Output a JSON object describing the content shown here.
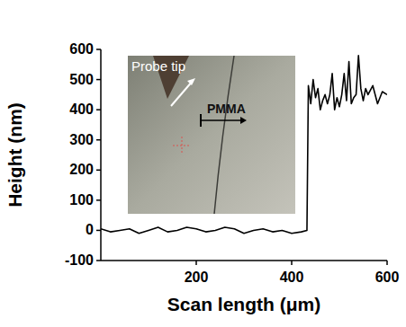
{
  "chart_data": {
    "type": "line",
    "x_label": "Scan length  (μm)",
    "y_label": "Height (nm)",
    "annotations": [
      "Probe tip",
      "PMMA"
    ],
    "x": [
      0,
      20,
      40,
      60,
      80,
      100,
      120,
      140,
      160,
      180,
      200,
      220,
      240,
      260,
      280,
      300,
      320,
      340,
      360,
      380,
      400,
      420,
      432,
      435,
      440,
      445,
      450,
      455,
      460,
      465,
      470,
      475,
      480,
      485,
      490,
      495,
      500,
      505,
      510,
      515,
      520,
      525,
      530,
      535,
      540,
      545,
      550,
      555,
      560,
      570,
      580,
      590,
      600
    ],
    "values": [
      5,
      -5,
      0,
      5,
      -10,
      0,
      10,
      -5,
      0,
      10,
      5,
      -5,
      0,
      10,
      5,
      -10,
      0,
      5,
      -5,
      0,
      -10,
      -5,
      0,
      480,
      420,
      500,
      440,
      470,
      400,
      430,
      450,
      420,
      450,
      520,
      400,
      440,
      410,
      450,
      520,
      430,
      560,
      420,
      440,
      450,
      580,
      470,
      430,
      470,
      450,
      480,
      420,
      460,
      450
    ],
    "color": "#000000",
    "xlim": [
      0,
      600
    ],
    "xticks": [
      200,
      400,
      600
    ],
    "ylim": [
      -100,
      600
    ],
    "yticks": [
      -100,
      0,
      100,
      200,
      300,
      400,
      500,
      600
    ],
    "grid": false
  }
}
